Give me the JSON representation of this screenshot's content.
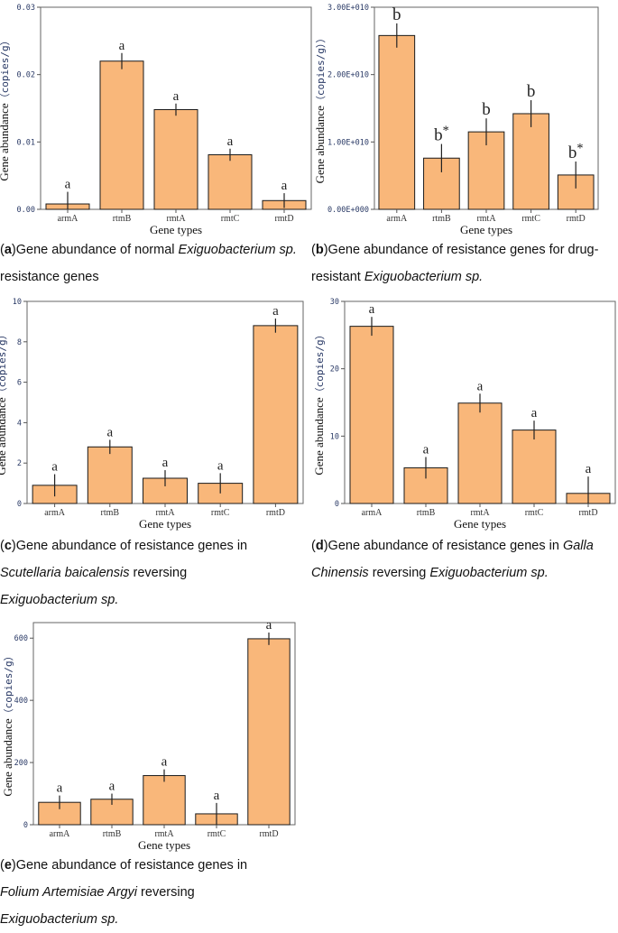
{
  "chart_data": [
    {
      "id": "a",
      "type": "bar",
      "categories": [
        "armA",
        "rtmB",
        "rmtA",
        "rmtC",
        "rmtD"
      ],
      "values": [
        0.0008,
        0.022,
        0.0148,
        0.0081,
        0.0013
      ],
      "errors": [
        0.0018,
        0.0012,
        0.0009,
        0.0009,
        0.0011
      ],
      "labels": [
        "a",
        "a",
        "a",
        "a",
        "a"
      ],
      "ylim": [
        0,
        0.03
      ],
      "yticks": [
        "0.00",
        "0.01",
        "0.02",
        "0.03"
      ],
      "ytick_values": [
        0,
        0.01,
        0.02,
        0.03
      ],
      "xlabel": "Gene types",
      "ylabel": "Gene abundance",
      "yunit": "（copies/g）"
    },
    {
      "id": "b",
      "type": "bar",
      "categories": [
        "armA",
        "rtmB",
        "rmtA",
        "rmtC",
        "rmtD"
      ],
      "values": [
        25800000000.0,
        7600000000.0,
        11500000000.0,
        14200000000.0,
        5100000000.0
      ],
      "errors": [
        1800000000.0,
        2100000000.0,
        2000000000.0,
        2000000000.0,
        2000000000.0
      ],
      "labels": [
        "b",
        "b*",
        "b",
        "b",
        "b*"
      ],
      "ylim": [
        0,
        30000000000.0
      ],
      "yticks": [
        "0.00E+000",
        "1.00E+010",
        "2.00E+010",
        "3.00E+010"
      ],
      "ytick_values": [
        0,
        10000000000.0,
        20000000000.0,
        30000000000.0
      ],
      "xlabel": "Gene types",
      "ylabel": "Gene abundance",
      "yunit": "（copies/g））"
    },
    {
      "id": "c",
      "type": "bar",
      "categories": [
        "armA",
        "rtmB",
        "rmtA",
        "rmtC",
        "rmtD"
      ],
      "values": [
        0.9,
        2.8,
        1.25,
        1.0,
        8.8
      ],
      "errors": [
        0.55,
        0.35,
        0.4,
        0.5,
        0.35
      ],
      "labels": [
        "a",
        "a",
        "a",
        "a",
        "a"
      ],
      "ylim": [
        0,
        10
      ],
      "yticks": [
        "0",
        "2",
        "4",
        "6",
        "8",
        "10"
      ],
      "ytick_values": [
        0,
        2,
        4,
        6,
        8,
        10
      ],
      "xlabel": "Gene types",
      "ylabel": "Gene abundance",
      "yunit": "（copies/g）"
    },
    {
      "id": "d",
      "type": "bar",
      "categories": [
        "armA",
        "rtmB",
        "rmtA",
        "rmtC",
        "rmtD"
      ],
      "values": [
        26.3,
        5.3,
        14.9,
        10.9,
        1.5
      ],
      "errors": [
        1.4,
        1.6,
        1.4,
        1.4,
        2.5
      ],
      "labels": [
        "a",
        "a",
        "a",
        "a",
        "a"
      ],
      "ylim": [
        0,
        30
      ],
      "yticks": [
        "0",
        "10",
        "20",
        "30"
      ],
      "ytick_values": [
        0,
        10,
        20,
        30
      ],
      "xlabel": "Gene types",
      "ylabel": "Gene abundance",
      "yunit": "（copies/g）"
    },
    {
      "id": "e",
      "type": "bar",
      "categories": [
        "armA",
        "rtmB",
        "rmtA",
        "rmtC",
        "rmtD"
      ],
      "values": [
        72,
        82,
        158,
        35,
        598
      ],
      "errors": [
        22,
        18,
        20,
        35,
        20
      ],
      "labels": [
        "a",
        "a",
        "a",
        "a",
        "a"
      ],
      "ylim": [
        0,
        650
      ],
      "yticks": [
        "0",
        "200",
        "400",
        "600"
      ],
      "ytick_values": [
        0,
        200,
        400,
        600
      ],
      "xlabel": "Gene types",
      "ylabel": "Gene abundance",
      "yunit": "（copies/g）"
    }
  ],
  "captions": {
    "a": {
      "letter": "a",
      "pre": "Gene abundance of normal ",
      "italic": "Exiguobacterium sp.",
      "post": " resistance genes"
    },
    "b": {
      "letter": "b",
      "pre": "Gene abundance of resistance genes for drug-resistant ",
      "italic": "Exiguobacterium sp.",
      "post": ""
    },
    "c": {
      "letter": "c",
      "pre": "Gene abundance of resistance genes in ",
      "italic": "Scutellaria baicalensis",
      "post": " reversing ",
      "italic2": "Exiguobacterium sp."
    },
    "d": {
      "letter": "d",
      "pre": "Gene abundance of resistance genes in ",
      "italic": "Galla Chinensis",
      "post": " reversing ",
      "italic2": "Exiguobacterium sp."
    },
    "e": {
      "letter": "e",
      "pre": "Gene abundance of resistance genes in ",
      "italic": "Folium Artemisiae Argyi",
      "post": " reversing ",
      "italic2": "Exiguobacterium sp."
    }
  },
  "colors": {
    "bar_fill": "#f9b77a",
    "bar_stroke": "#1a1a1a",
    "tick_label": "#2a3a66"
  }
}
